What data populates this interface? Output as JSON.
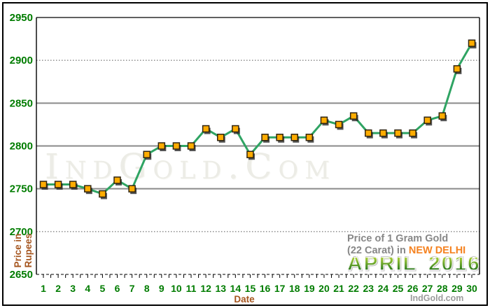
{
  "chart_data": {
    "type": "line",
    "x": [
      1,
      2,
      3,
      4,
      5,
      6,
      7,
      8,
      9,
      10,
      11,
      12,
      13,
      14,
      15,
      16,
      17,
      18,
      19,
      20,
      21,
      22,
      23,
      24,
      25,
      26,
      27,
      28,
      29,
      30
    ],
    "values": [
      2755,
      2755,
      2755,
      2750,
      2744,
      2760,
      2750,
      2790,
      2800,
      2800,
      2800,
      2820,
      2810,
      2820,
      2790,
      2810,
      2810,
      2810,
      2810,
      2830,
      2825,
      2835,
      2815,
      2815,
      2815,
      2815,
      2830,
      2835,
      2890,
      2920
    ],
    "xlabel": "Date",
    "ylabel_lines": [
      "Price in",
      "Rupees"
    ],
    "yticks": [
      2950,
      2900,
      2850,
      2800,
      2750,
      2700,
      2650
    ],
    "ylim": [
      2650,
      2950
    ],
    "xlim": [
      1,
      30
    ],
    "grid": true,
    "watermark": "IndGold.Com",
    "title_line1": "Price of 1 Gram Gold",
    "title_line2_prefix": "(22 Carat) in ",
    "title_city": "NEW DELHI",
    "title_month": "APRIL",
    "title_year": "2016"
  },
  "branding": {
    "footer_text": "IndGold.com"
  },
  "colors": {
    "line-green": "#2FA463",
    "marker-orange": "#FFAC00",
    "marker-border": "#2F2410",
    "marker-shadow": "#2B2B2B",
    "tick-green": "#007C00",
    "axis-brown": "#A5551E",
    "info-gray": "#878787",
    "city-orange": "#F58220",
    "month-green-top": "#A8CE38",
    "month-green-bottom": "#2E7D1E",
    "footer-gray": "#9C9C9C",
    "grid-gray": "#8A8A8A",
    "grid-dot": "#555555",
    "axis-black": "#000000",
    "watermark-gray": "#ECECE6"
  }
}
